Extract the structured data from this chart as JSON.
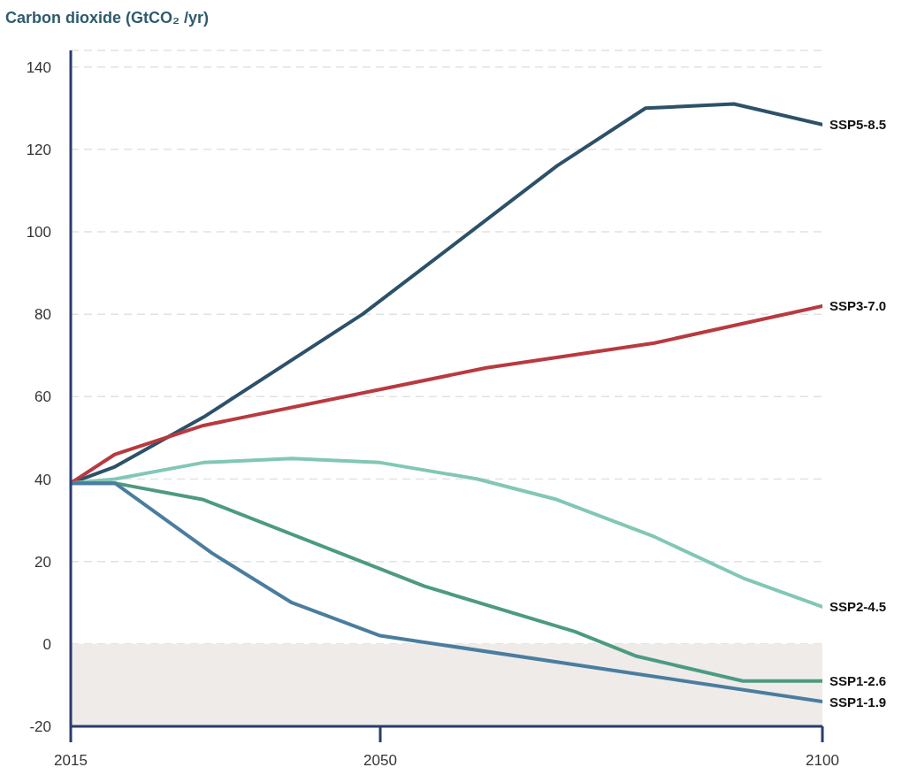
{
  "chart_data": {
    "type": "line",
    "title": "Carbon dioxide (GtCO₂ /yr)",
    "xlim": [
      2015,
      2100
    ],
    "xticks": [
      2015,
      2050,
      2100
    ],
    "ylim": [
      -20,
      144
    ],
    "yticks": [
      -20,
      0,
      20,
      40,
      60,
      80,
      100,
      120,
      140
    ],
    "grid": "y",
    "line_style": "solid",
    "bands": [
      {
        "axis": "y",
        "from": -20,
        "to": 0,
        "color": "#eeebe9"
      }
    ],
    "series": [
      {
        "name": "SSP5-8.5",
        "color": "#2c5169",
        "x": [
          2015,
          2020,
          2030,
          2048,
          2070,
          2080,
          2090,
          2100
        ],
        "values": [
          39,
          43,
          55,
          80,
          116,
          130,
          131,
          126
        ]
      },
      {
        "name": "SSP3-7.0",
        "color": "#b83a3f",
        "x": [
          2015,
          2020,
          2030,
          2062,
          2081,
          2100
        ],
        "values": [
          39,
          46,
          53,
          67,
          73,
          82
        ]
      },
      {
        "name": "SSP2-4.5",
        "color": "#82c7b5",
        "x": [
          2015,
          2020,
          2030,
          2040,
          2050,
          2061,
          2070,
          2081,
          2091,
          2100
        ],
        "values": [
          39,
          40,
          44,
          45,
          44,
          40,
          35,
          26,
          16,
          9
        ]
      },
      {
        "name": "SSP1-2.6",
        "color": "#4d9a83",
        "x": [
          2015,
          2020,
          2030,
          2055,
          2072,
          2079,
          2091,
          2100
        ],
        "values": [
          39,
          39,
          35,
          14,
          3,
          -3,
          -9,
          -9
        ]
      },
      {
        "name": "SSP1-1.9",
        "color": "#4a7d9f",
        "x": [
          2015,
          2020,
          2031,
          2040,
          2050,
          2100
        ],
        "values": [
          39,
          39,
          22,
          10,
          2,
          -14
        ]
      }
    ]
  }
}
